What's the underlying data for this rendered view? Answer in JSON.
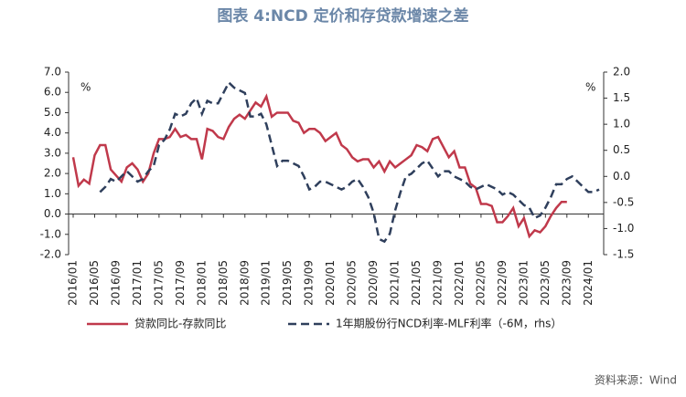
{
  "chart_data": {
    "type": "line",
    "title": "图表 4:NCD 定价和存贷款增速之差",
    "source": "资料来源：Wind",
    "y_unit": "%",
    "y2_unit": "%",
    "categories": [
      "2016/01",
      null,
      null,
      null,
      "2016/05",
      null,
      null,
      null,
      "2016/09",
      null,
      null,
      null,
      "2017/01",
      null,
      null,
      null,
      "2017/05",
      null,
      null,
      null,
      "2017/09",
      null,
      null,
      null,
      "2018/01",
      null,
      null,
      null,
      "2018/05",
      null,
      null,
      null,
      "2018/09",
      null,
      null,
      null,
      "2019/01",
      null,
      null,
      null,
      "2019/05",
      null,
      null,
      null,
      "2019/09",
      null,
      null,
      null,
      "2020/01",
      null,
      null,
      null,
      "2020/05",
      null,
      null,
      null,
      "2020/09",
      null,
      null,
      null,
      "2021/01",
      null,
      null,
      null,
      "2021/05",
      null,
      null,
      null,
      "2021/09",
      null,
      null,
      null,
      "2022/01",
      null,
      null,
      null,
      "2022/05",
      null,
      null,
      null,
      "2022/09",
      null,
      null,
      null,
      "2023/01",
      null,
      null,
      null,
      "2023/05",
      null,
      null,
      null,
      "2023/09",
      null,
      null,
      null,
      "2024/01",
      null,
      null
    ],
    "series": [
      {
        "name": "贷款同比-存款同比",
        "color": "#c0394b",
        "style": "solid",
        "axis": "y",
        "values": [
          2.8,
          1.4,
          1.7,
          1.5,
          2.9,
          3.4,
          3.4,
          2.2,
          1.9,
          1.6,
          2.3,
          2.5,
          2.2,
          1.6,
          2.0,
          3.0,
          3.7,
          3.7,
          3.8,
          4.2,
          3.8,
          3.9,
          3.7,
          3.7,
          2.7,
          4.2,
          4.1,
          3.8,
          3.7,
          4.3,
          4.7,
          4.9,
          4.7,
          5.1,
          5.5,
          5.3,
          5.8,
          4.8,
          5.0,
          5.0,
          5.0,
          4.6,
          4.5,
          4.0,
          4.2,
          4.2,
          4.0,
          3.6,
          3.8,
          4.0,
          3.4,
          3.2,
          2.8,
          2.6,
          2.7,
          2.7,
          2.3,
          2.6,
          2.1,
          2.6,
          2.3,
          2.5,
          2.7,
          2.9,
          3.4,
          3.3,
          3.1,
          3.7,
          3.8,
          3.3,
          2.8,
          3.1,
          2.3,
          2.3,
          1.5,
          1.3,
          0.5,
          0.5,
          0.4,
          -0.4,
          -0.4,
          -0.1,
          0.3,
          -0.6,
          -0.2,
          -1.1,
          -0.8,
          -0.9,
          -0.6,
          -0.1,
          0.3,
          0.6,
          0.6,
          null,
          null,
          null,
          null,
          null,
          null
        ]
      },
      {
        "name": "1年期股份行NCD利率-MLF利率（-6M，rhs）",
        "color": "#2f3f5c",
        "style": "dashed",
        "axis": "y2",
        "values": [
          null,
          null,
          null,
          null,
          null,
          -0.3,
          -0.2,
          -0.05,
          -0.1,
          0.0,
          0.1,
          0.0,
          -0.1,
          -0.05,
          0.1,
          0.2,
          0.6,
          0.7,
          0.9,
          1.2,
          1.15,
          1.2,
          1.4,
          1.5,
          1.2,
          1.45,
          1.4,
          1.4,
          1.6,
          1.8,
          1.7,
          1.65,
          1.6,
          1.15,
          1.15,
          1.2,
          1.0,
          0.6,
          0.2,
          0.3,
          0.3,
          0.25,
          0.2,
          0.0,
          -0.25,
          -0.2,
          -0.1,
          -0.1,
          -0.15,
          -0.2,
          -0.25,
          -0.2,
          -0.1,
          -0.05,
          -0.2,
          -0.4,
          -0.7,
          -1.2,
          -1.25,
          -1.1,
          -0.65,
          -0.3,
          0.0,
          0.05,
          0.15,
          0.25,
          0.3,
          0.15,
          0.0,
          0.1,
          0.1,
          0.0,
          -0.05,
          -0.1,
          -0.2,
          -0.25,
          -0.2,
          -0.15,
          -0.2,
          -0.25,
          -0.35,
          -0.3,
          -0.35,
          -0.45,
          -0.55,
          -0.6,
          -0.8,
          -0.75,
          -0.6,
          -0.4,
          -0.15,
          -0.15,
          -0.05,
          0.0,
          -0.1,
          -0.2,
          -0.3,
          -0.3,
          -0.25
        ]
      }
    ],
    "ylim": [
      -2,
      7
    ],
    "yticks": [
      {
        "value": -2,
        "label": "-2.0"
      },
      {
        "value": -1,
        "label": "-1.0"
      },
      {
        "value": 0,
        "label": "0.0"
      },
      {
        "value": 1,
        "label": "1.0"
      },
      {
        "value": 2,
        "label": "2.0"
      },
      {
        "value": 3,
        "label": "3.0"
      },
      {
        "value": 4,
        "label": "4.0"
      },
      {
        "value": 5,
        "label": "5.0"
      },
      {
        "value": 6,
        "label": "6.0"
      },
      {
        "value": 7,
        "label": "7.0"
      }
    ],
    "y2lim": [
      -1.5,
      2
    ],
    "y2ticks": [
      {
        "value": -1.5,
        "label": "-1.5"
      },
      {
        "value": -1,
        "label": "-1.0"
      },
      {
        "value": -0.5,
        "label": "-0.5"
      },
      {
        "value": 0,
        "label": "0.0"
      },
      {
        "value": 0.5,
        "label": "0.5"
      },
      {
        "value": 1,
        "label": "1.0"
      },
      {
        "value": 1.5,
        "label": "1.5"
      },
      {
        "value": 2,
        "label": "2.0"
      }
    ],
    "grid": false
  }
}
